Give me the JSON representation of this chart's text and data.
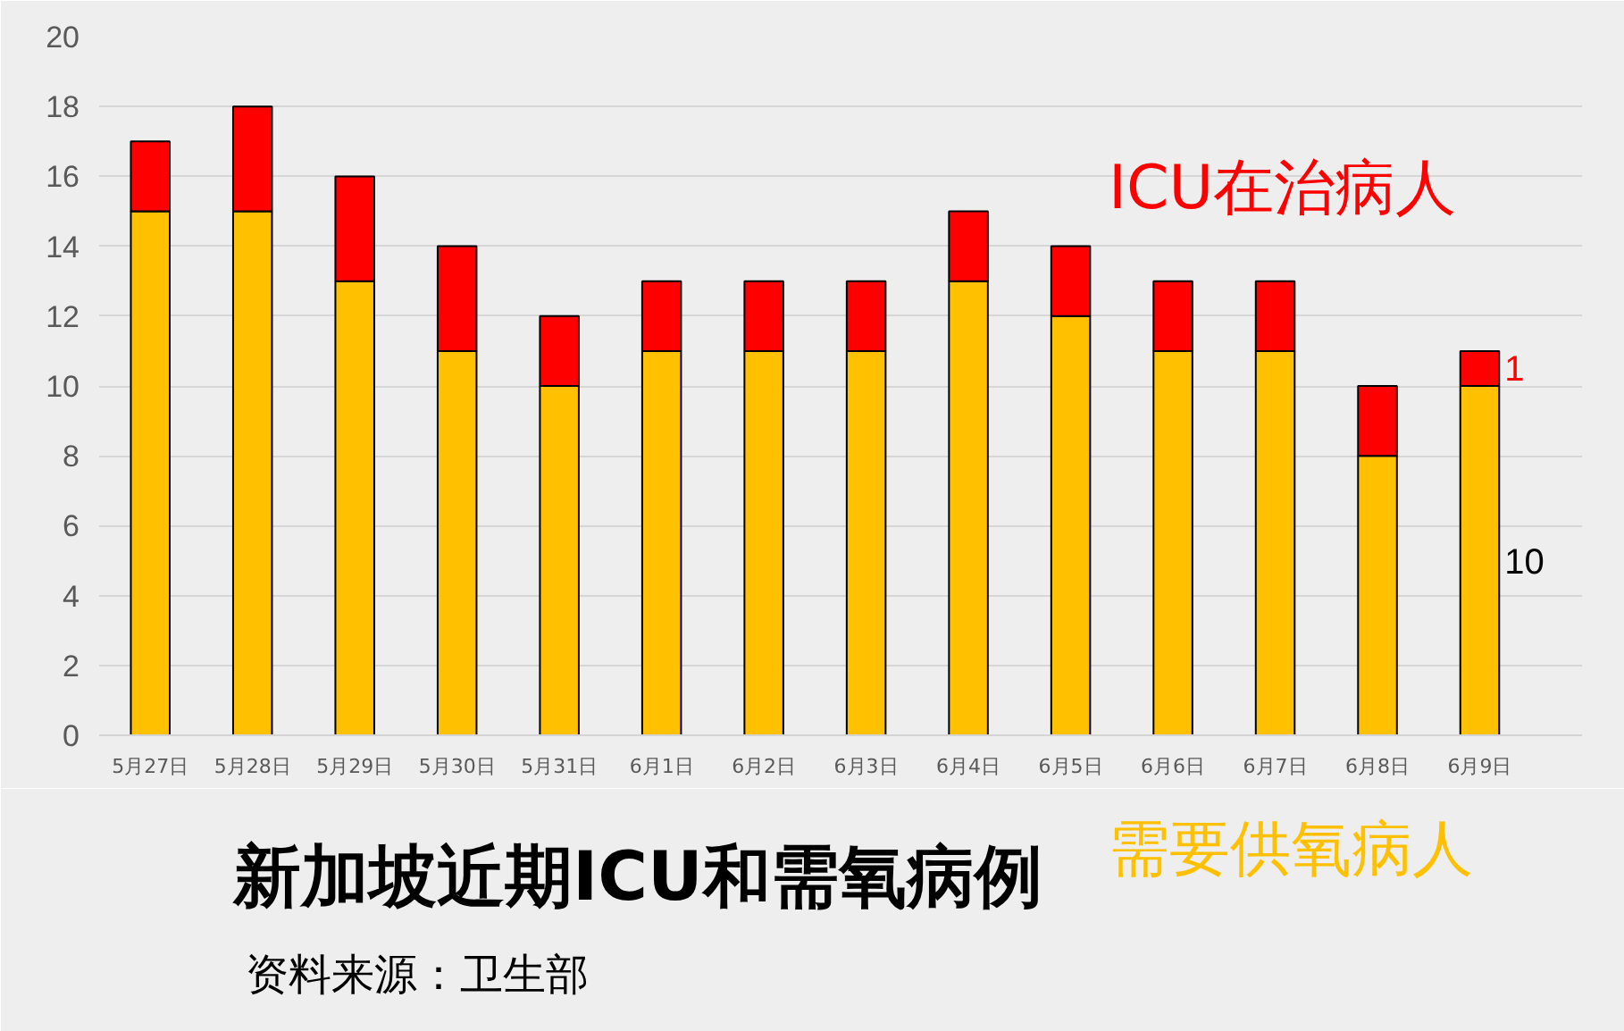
{
  "chart_data": {
    "type": "bar",
    "title": "新加坡近期ICU和需氧病例",
    "categories": [
      "5月27日",
      "5月28日",
      "5月29日",
      "5月30日",
      "5月31日",
      "6月1日",
      "6月2日",
      "6月3日",
      "6月4日",
      "6月5日",
      "6月6日",
      "6月7日",
      "6月8日",
      "6月9日"
    ],
    "stacked": true,
    "series": [
      {
        "name": "需要供氧病人",
        "color": "#ffc000",
        "values": [
          15,
          15,
          13,
          11,
          10,
          11,
          11,
          11,
          13,
          12,
          11,
          11,
          8,
          10
        ],
        "value_labels": [
          null,
          null,
          null,
          null,
          null,
          null,
          null,
          null,
          null,
          null,
          null,
          null,
          null,
          "10"
        ]
      },
      {
        "name": "ICU在治病人",
        "color": "#ff0000",
        "values": [
          2,
          3,
          3,
          3,
          2,
          2,
          2,
          2,
          2,
          2,
          2,
          2,
          2,
          1
        ],
        "value_labels": [
          null,
          null,
          null,
          null,
          null,
          null,
          null,
          null,
          null,
          null,
          null,
          null,
          null,
          "1"
        ]
      }
    ],
    "ylim": [
      0,
      20
    ],
    "yticks": [
      0,
      2,
      4,
      6,
      8,
      10,
      12,
      14,
      16,
      18,
      20
    ],
    "grid": "y",
    "annotations": [
      "资料来源：卫生部"
    ]
  }
}
